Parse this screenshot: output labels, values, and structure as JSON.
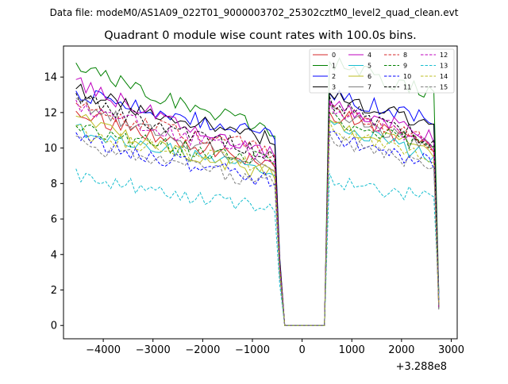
{
  "header": {
    "data_file_label": "Data file: modeM0/AS1A09_022T01_9000003702_25302cztM0_level2_quad_clean.evt"
  },
  "chart_data": {
    "type": "line",
    "title": "Quadrant 0 module wise count rates with 100.0s bins.",
    "xlabel": "",
    "ylabel": "",
    "x_offset_label": "+3.288e8",
    "xlim": [
      -4800,
      3120
    ],
    "ylim": [
      -0.75,
      15.75
    ],
    "x_ticks": [
      -4000,
      -3000,
      -2000,
      -1000,
      0,
      1000,
      2000,
      3000
    ],
    "x_tick_labels": [
      "−4000",
      "−3000",
      "−2000",
      "−1000",
      "0",
      "1000",
      "2000",
      "3000"
    ],
    "y_ticks": [
      0,
      2,
      4,
      6,
      8,
      10,
      12,
      14
    ],
    "y_tick_labels": [
      "0",
      "2",
      "4",
      "6",
      "8",
      "10",
      "12",
      "14"
    ],
    "x_start": -4550,
    "bin_width": 100,
    "legend_position": "top-right",
    "series": [
      {
        "name": "0",
        "color": "#d62728",
        "dashed": false,
        "start": 12.1,
        "end": 9.2,
        "after_start": 12.0,
        "after_end": 10.0
      },
      {
        "name": "1",
        "color": "#008000",
        "dashed": false,
        "start": 14.8,
        "end": 11.0,
        "after_start": 14.8,
        "after_end": 13.0
      },
      {
        "name": "2",
        "color": "#0000ff",
        "dashed": false,
        "start": 13.2,
        "end": 10.8,
        "after_start": 13.0,
        "after_end": 11.6
      },
      {
        "name": "3",
        "color": "#000000",
        "dashed": false,
        "start": 13.3,
        "end": 10.5,
        "after_start": 13.0,
        "after_end": 11.2
      },
      {
        "name": "4",
        "color": "#bf00bf",
        "dashed": false,
        "start": 13.8,
        "end": 9.8,
        "after_start": 12.5,
        "after_end": 10.6
      },
      {
        "name": "5",
        "color": "#17becf",
        "dashed": false,
        "start": 11.2,
        "end": 8.7,
        "after_start": 11.4,
        "after_end": 9.4
      },
      {
        "name": "6",
        "color": "#bcbd22",
        "dashed": false,
        "start": 11.7,
        "end": 8.5,
        "after_start": 11.4,
        "after_end": 9.8
      },
      {
        "name": "7",
        "color": "#7f7f7f",
        "dashed": false,
        "start": 12.7,
        "end": 8.9,
        "after_start": 12.2,
        "after_end": 9.9
      },
      {
        "name": "8",
        "color": "#d62728",
        "dashed": true,
        "start": 12.4,
        "end": 9.9,
        "after_start": 12.2,
        "after_end": 10.2
      },
      {
        "name": "9",
        "color": "#008000",
        "dashed": true,
        "start": 11.1,
        "end": 9.3,
        "after_start": 11.7,
        "after_end": 10.0
      },
      {
        "name": "10",
        "color": "#0000ff",
        "dashed": true,
        "start": 10.7,
        "end": 8.2,
        "after_start": 10.6,
        "after_end": 9.2
      },
      {
        "name": "11",
        "color": "#000000",
        "dashed": true,
        "start": 12.9,
        "end": 9.7,
        "after_start": 12.6,
        "after_end": 10.4
      },
      {
        "name": "12",
        "color": "#bf00bf",
        "dashed": true,
        "start": 12.5,
        "end": 9.5,
        "after_start": 12.3,
        "after_end": 10.3
      },
      {
        "name": "13",
        "color": "#17becf",
        "dashed": true,
        "start": 8.6,
        "end": 6.6,
        "after_start": 8.2,
        "after_end": 7.2
      },
      {
        "name": "14",
        "color": "#bcbd22",
        "dashed": true,
        "start": 11.0,
        "end": 9.0,
        "after_start": 11.1,
        "after_end": 9.6
      },
      {
        "name": "15",
        "color": "#7f7f7f",
        "dashed": true,
        "start": 10.4,
        "end": 8.1,
        "after_start": 10.4,
        "after_end": 8.9
      }
    ]
  }
}
